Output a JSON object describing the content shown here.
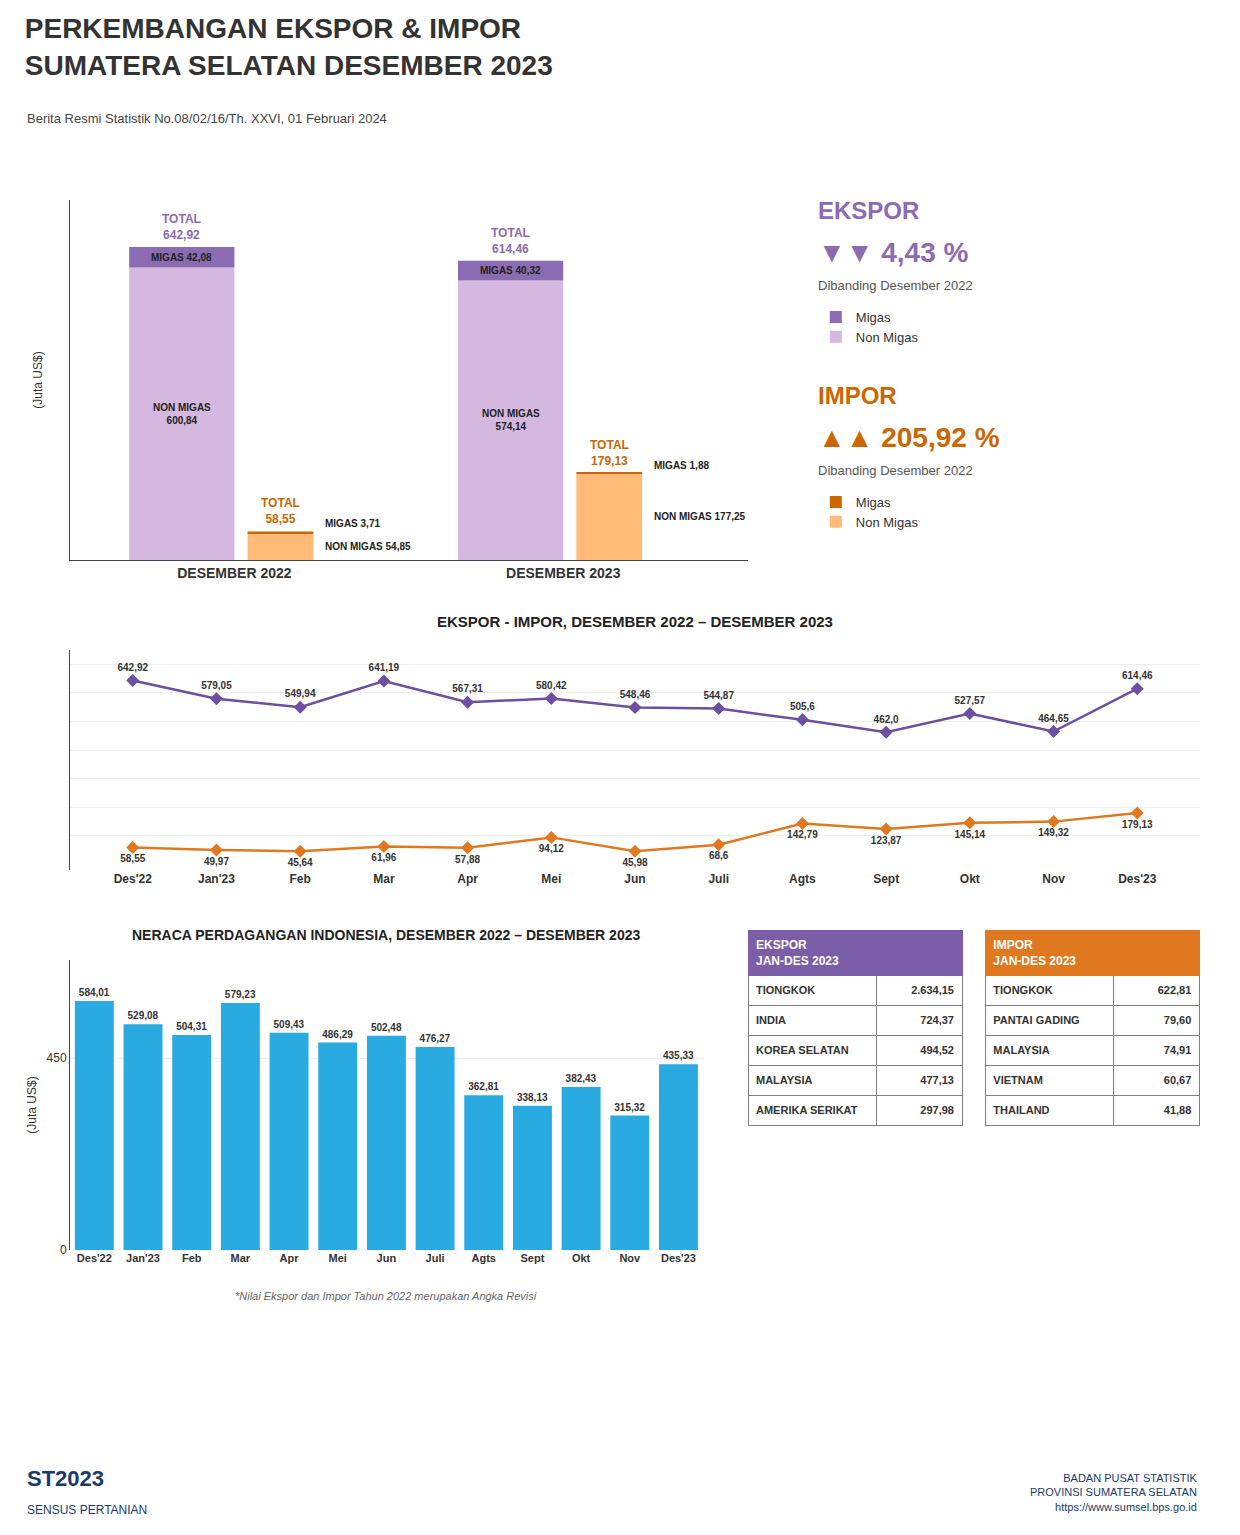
{
  "title": "PERKEMBANGAN EKSPOR & IMPOR\nSUMATERA SELATAN DESEMBER 2023",
  "subtitle": "Berita Resmi Statistik No.08/02/16/Th. XXVI, 01 Februari 2024",
  "annotations": [
    "ST2023",
    "SENSUS PERTANIAN",
    "BADAN PUSAT STATISTIK\nPROVINSI SUMATERA SELATAN\nhttps://www.sumsel.bps.go.id"
  ],
  "chart_data": [
    {
      "type": "bar",
      "title": "EKSPOR",
      "stacked": true,
      "legend": "right",
      "data_labels": true,
      "tick_labels": "x",
      "categories": [
        "DESEMBER 2022",
        "DESEMBER 2023"
      ],
      "series": [
        {
          "name": "Non Migas",
          "color": "#D4B8E0",
          "values": [
            600.84,
            574.14
          ],
          "value_labels": [
            "NON MIGAS\n600,84",
            "NON MIGAS\n574,14"
          ]
        },
        {
          "name": "Migas",
          "color": "#8B6BB1",
          "values": [
            42.08,
            40.32
          ],
          "value_labels": [
            "MIGAS 42,08",
            "MIGAS 40,32"
          ]
        }
      ],
      "totals": [
        642.92,
        614.46
      ],
      "total_labels": [
        "TOTAL\n642,92",
        "TOTAL\n614,46"
      ],
      "ylabel": "(Juta US$)",
      "ylim": [
        0,
        739.358
      ],
      "annotations": [
        "▼▼",
        "4,43 %",
        "Dibanding Desember 2022"
      ]
    },
    {
      "type": "bar",
      "title": "IMPOR",
      "stacked": true,
      "legend": "right",
      "data_labels": true,
      "tick_labels": "x",
      "categories": [
        "DESEMBER 2022",
        "DESEMBER 2023"
      ],
      "series": [
        {
          "name": "Non Migas",
          "color": "#FFBB77",
          "values": [
            54.85,
            177.25
          ],
          "value_labels": [
            "NON MIGAS 54,85",
            "NON MIGAS 177,25"
          ]
        },
        {
          "name": "Migas",
          "color": "#cc6600",
          "values": [
            3.71,
            1.88
          ],
          "value_labels": [
            "MIGAS 3,71",
            "MIGAS 1,88"
          ]
        }
      ],
      "totals": [
        58.55,
        179.13
      ],
      "total_labels": [
        "TOTAL\n58,55",
        "TOTAL\n179,13"
      ],
      "ylim": [
        0,
        739.358
      ],
      "annotations": [
        "▲▲",
        "205,92 %",
        "Dibanding Desember 2022"
      ]
    },
    {
      "type": "line",
      "title": "EKSPOR - IMPOR, DESEMBER 2022 – DESEMBER 2023",
      "categories": [
        "Des'22",
        "Jan'23",
        "Feb",
        "Mar",
        "Apr",
        "Mei",
        "Jun",
        "Juli",
        "Agts",
        "Sept",
        "Okt",
        "Nov",
        "Des'23"
      ],
      "series": [
        {
          "color": "#e07820",
          "marker": "diamond",
          "values": [
            58.55,
            49.97,
            45.64,
            61.96,
            57.88,
            94.12,
            45.98,
            68.6,
            142.79,
            123.87,
            145.14,
            149.32,
            179.13
          ],
          "value_labels": [
            "58,55",
            "49,97",
            "45,64",
            "61,96",
            "57,88",
            "94,12",
            "45,98",
            "68,6",
            "142,79",
            "123,87",
            "145,14",
            "149,32",
            "179,13"
          ]
        },
        {
          "color": "#6B4FA0",
          "marker": "diamond",
          "values": [
            642.92,
            579.05,
            549.94,
            641.19,
            567.31,
            580.42,
            548.46,
            544.87,
            505.6,
            462.0,
            527.57,
            464.65,
            614.46
          ],
          "value_labels": [
            "642,92",
            "579,05",
            "549,94",
            "641,19",
            "567,31",
            "580,42",
            "548,46",
            "544,87",
            "505,6",
            "462,0",
            "527,57",
            "464,65",
            "614,46"
          ]
        }
      ],
      "data_labels": true,
      "ylim": [
        -20,
        750
      ],
      "yticks": [
        100,
        200,
        300,
        400,
        500,
        600,
        700
      ],
      "grid": true,
      "tick_labels": "x"
    },
    {
      "type": "bar",
      "title": "NERACA PERDAGANGAN INDONESIA, DESEMBER 2022 – DESEMBER 2023",
      "categories": [
        "Des'22",
        "Jan'23",
        "Feb",
        "Mar",
        "Apr",
        "Mei",
        "Jun",
        "Juli",
        "Agts",
        "Sept",
        "Okt",
        "Nov",
        "Des'23"
      ],
      "values": [
        584.01,
        529.08,
        504.31,
        579.23,
        509.43,
        486.29,
        502.48,
        476.27,
        362.81,
        338.13,
        382.43,
        315.32,
        435.33
      ],
      "value_labels": [
        "584,01",
        "529,08",
        "504,31",
        "579,23",
        "509,43",
        "486,29",
        "502,48",
        "476,27",
        "362,81",
        "338,13",
        "382,43",
        "315,32",
        "435,33"
      ],
      "color": "#29abe2",
      "data_labels": true,
      "ylabel": "(Juta US$)",
      "ylim": [
        0,
        680
      ],
      "yticks": [
        0,
        450
      ],
      "grid": true,
      "annotations": [
        "*Nilai Ekspor dan Impor Tahun 2022 merupakan Angka Revisi"
      ]
    },
    {
      "type": "table",
      "title": "EKSPOR\nJAN-DES 2023",
      "color": "#7B5EA7",
      "categories": [
        "TIONGKOK",
        "INDIA",
        "KOREA SELATAN",
        "MALAYSIA",
        "AMERIKA SERIKAT"
      ],
      "values": [
        2634.15,
        724.37,
        494.52,
        477.13,
        297.98
      ],
      "value_labels": [
        "2.634,15",
        "724,37",
        "494,52",
        "477,13",
        "297,98"
      ]
    },
    {
      "type": "table",
      "title": "IMPOR\nJAN-DES 2023",
      "color": "#E07820",
      "categories": [
        "TIONGKOK",
        "PANTAI GADING",
        "MALAYSIA",
        "VIETNAM",
        "THAILAND"
      ],
      "values": [
        622.81,
        79.6,
        74.91,
        60.67,
        41.88
      ],
      "value_labels": [
        "622,81",
        "79,60",
        "74,91",
        "60,67",
        "41,88"
      ]
    }
  ]
}
